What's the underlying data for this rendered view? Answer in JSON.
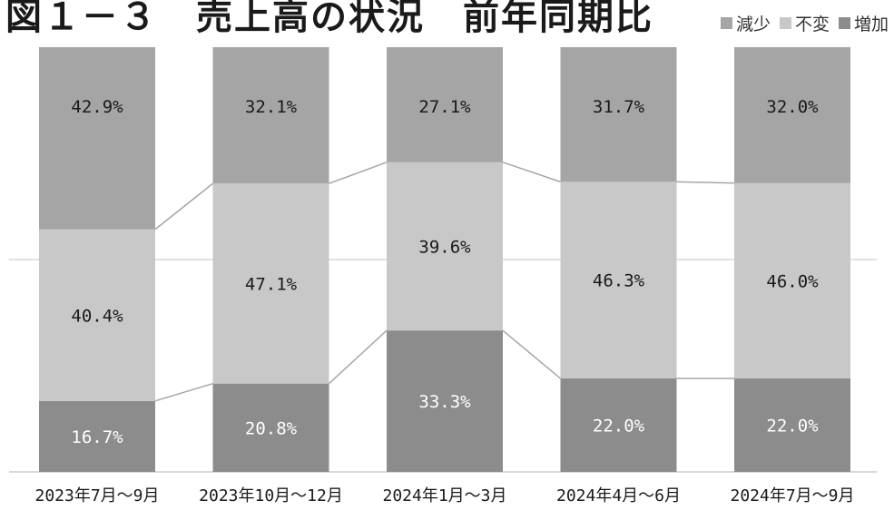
{
  "title": "図１－３　売上高の状況　前年同期比",
  "chart_data": {
    "type": "bar",
    "stacked": true,
    "percent": true,
    "title": "図１－３　売上高の状況　前年同期比",
    "categories": [
      "2023年7月～9月",
      "2023年10月～12月",
      "2024年1月～3月",
      "2024年4月～6月",
      "2024年7月～9月"
    ],
    "series": [
      {
        "name": "増加",
        "values": [
          16.7,
          20.8,
          33.3,
          22.0,
          22.0
        ],
        "labels": [
          "16.7%",
          "20.8%",
          "33.3%",
          "22.0%",
          "22.0%"
        ],
        "color": "#8c8c8c",
        "label_color": "#ffffff"
      },
      {
        "name": "不変",
        "values": [
          40.4,
          47.1,
          39.6,
          46.3,
          46.0
        ],
        "labels": [
          "40.4%",
          "47.1%",
          "39.6%",
          "46.3%",
          "46.0%"
        ],
        "color": "#c8c8c8",
        "label_color": "#1a1a1a"
      },
      {
        "name": "減少",
        "values": [
          42.9,
          32.1,
          27.1,
          31.7,
          32.0
        ],
        "labels": [
          "42.9%",
          "32.1%",
          "27.1%",
          "31.7%",
          "32.0%"
        ],
        "color": "#a5a5a5",
        "label_color": "#1a1a1a"
      }
    ],
    "legend_order": [
      2,
      1,
      0
    ],
    "legend_position": "top-right",
    "ylim": [
      0,
      100
    ],
    "grid": true,
    "series_lines": true
  }
}
